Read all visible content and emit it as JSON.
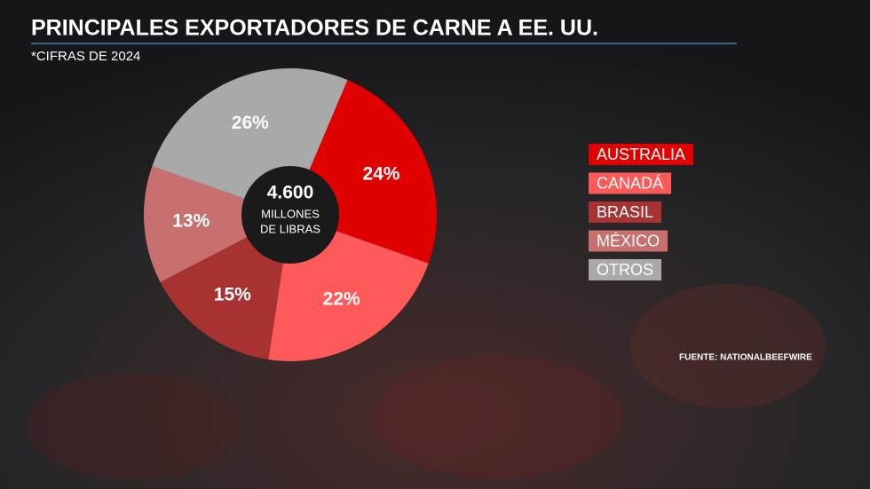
{
  "chart_data": {
    "type": "donut",
    "title": "PRINCIPALES EXPORTADORES DE CARNE A EE. UU.",
    "subtitle": "*CIFRAS DE 2024",
    "center_value": "4.600",
    "center_text": [
      "MILLONES",
      "DE LIBRAS"
    ],
    "categories": [
      "AUSTRALIA",
      "CANADÁ",
      "BRASIL",
      "MÉXICO",
      "OTROS"
    ],
    "values": [
      24,
      22,
      15,
      13,
      26
    ],
    "value_labels": [
      "24%",
      "22%",
      "15%",
      "13%",
      "26%"
    ],
    "colors": [
      "#e00000",
      "#ff5a5a",
      "#a83232",
      "#c87070",
      "#a9a9a9"
    ],
    "source": "FUENTE: NATIONALBEEFWIRE"
  }
}
